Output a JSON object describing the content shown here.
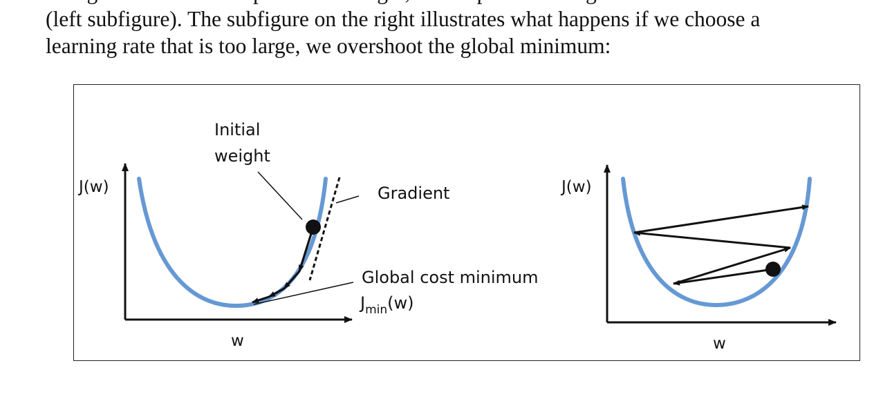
{
  "document": {
    "text_cut_line": "change the value of the parameter weight, we keep the learning rate and the cost function value",
    "text_line_1": "(left subfigure). The subfigure on the right illustrates what happens if we choose a",
    "text_line_2": "learning rate that is too large, we overshoot the global minimum:"
  },
  "figure": {
    "left": {
      "y_axis_label": "J(w)",
      "x_axis_label": "w",
      "label_initial_1": "Initial",
      "label_initial_2": "weight",
      "label_gradient": "Gradient",
      "label_global_min": "Global cost minimum",
      "label_jmin_main": "J",
      "label_jmin_sub": "min",
      "label_jmin_arg": "(w)"
    },
    "right": {
      "y_axis_label": "J(w)",
      "x_axis_label": "w"
    },
    "colors": {
      "curve": "#6699d4",
      "ink": "#111111"
    }
  }
}
